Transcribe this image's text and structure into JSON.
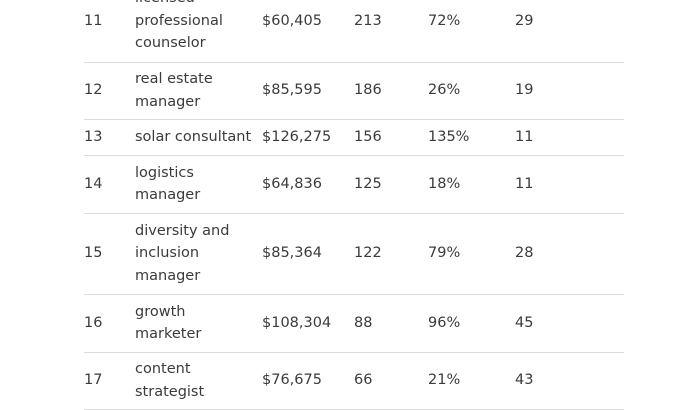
{
  "rows": [
    {
      "rank": "11",
      "job": "licensed professional counselor",
      "salary": "$60,405",
      "count": "213",
      "growth": "72%",
      "last": "29"
    },
    {
      "rank": "12",
      "job": "real estate manager",
      "salary": "$85,595",
      "count": "186",
      "growth": "26%",
      "last": "19"
    },
    {
      "rank": "13",
      "job": "solar consultant",
      "salary": "$126,275",
      "count": "156",
      "growth": "135%",
      "last": "11"
    },
    {
      "rank": "14",
      "job": "logistics manager",
      "salary": "$64,836",
      "count": "125",
      "growth": "18%",
      "last": "11"
    },
    {
      "rank": "15",
      "job": "diversity and inclusion manager",
      "salary": "$85,364",
      "count": "122",
      "growth": "79%",
      "last": "28"
    },
    {
      "rank": "16",
      "job": "growth marketer",
      "salary": "$108,304",
      "count": "88",
      "growth": "96%",
      "last": "45"
    },
    {
      "rank": "17",
      "job": "content strategist",
      "salary": "$76,675",
      "count": "66",
      "growth": "21%",
      "last": "43"
    }
  ]
}
